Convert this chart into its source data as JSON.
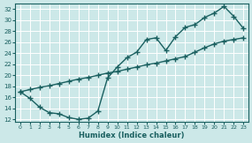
{
  "xlabel": "Humidex (Indice chaleur)",
  "ylabel": "",
  "bg_color": "#cce8e8",
  "grid_color": "#ffffff",
  "line_color": "#1a6060",
  "xlim": [
    -0.5,
    23.5
  ],
  "ylim": [
    11.5,
    33
  ],
  "yticks": [
    12,
    14,
    16,
    18,
    20,
    22,
    24,
    26,
    28,
    30,
    32
  ],
  "xticks": [
    0,
    1,
    2,
    3,
    4,
    5,
    6,
    7,
    8,
    9,
    10,
    11,
    12,
    13,
    14,
    15,
    16,
    17,
    18,
    19,
    20,
    21,
    22,
    23
  ],
  "curve1_x": [
    0,
    1,
    2,
    3,
    4,
    5,
    6,
    7,
    8,
    9,
    10,
    11,
    12,
    13,
    14,
    15,
    16,
    17,
    18,
    19,
    20,
    21,
    22,
    23
  ],
  "curve1_y": [
    17.0,
    15.8,
    14.2,
    13.2,
    13.0,
    12.3,
    12.0,
    12.2,
    13.5,
    19.5,
    21.5,
    23.2,
    24.2,
    26.5,
    26.8,
    24.5,
    27.0,
    28.7,
    29.2,
    30.5,
    31.3,
    32.5,
    30.7,
    28.5
  ],
  "curve2_x": [
    0,
    1,
    2,
    3,
    4,
    5,
    6,
    7,
    8,
    9,
    10,
    11,
    12,
    13,
    14,
    15,
    16,
    17,
    18,
    19,
    20,
    21,
    22,
    23
  ],
  "curve2_y": [
    17.0,
    17.4,
    17.8,
    18.1,
    18.5,
    18.9,
    19.3,
    19.6,
    20.0,
    20.4,
    20.7,
    21.1,
    21.5,
    21.9,
    22.2,
    22.6,
    23.0,
    23.4,
    24.2,
    25.0,
    25.7,
    26.2,
    26.5,
    26.8
  ]
}
